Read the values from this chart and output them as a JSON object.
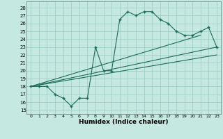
{
  "title": "",
  "xlabel": "Humidex (Indice chaleur)",
  "ylabel": "",
  "bg_color": "#c5e8e0",
  "grid_color": "#9ecfc7",
  "line_color": "#1a6b5a",
  "x_ticks": [
    0,
    1,
    2,
    3,
    4,
    5,
    6,
    7,
    8,
    9,
    10,
    11,
    12,
    13,
    14,
    15,
    16,
    17,
    18,
    19,
    20,
    21,
    22,
    23
  ],
  "y_ticks": [
    15,
    16,
    17,
    18,
    19,
    20,
    21,
    22,
    23,
    24,
    25,
    26,
    27,
    28
  ],
  "ylim": [
    14.5,
    28.8
  ],
  "xlim": [
    -0.5,
    23.5
  ],
  "main_y": [
    18,
    18,
    18,
    17,
    16.5,
    15.5,
    16.5,
    16.5,
    23,
    20,
    20,
    26.5,
    27.5,
    27,
    27.5,
    27.5,
    26.5,
    26,
    25,
    24.5,
    24.5,
    25,
    25.5,
    23
  ],
  "trend1_x": [
    0,
    23
  ],
  "trend1_y": [
    18.0,
    23.0
  ],
  "trend2_x": [
    0,
    23
  ],
  "trend2_y": [
    18.0,
    22.0
  ],
  "trend3_x": [
    0,
    21
  ],
  "trend3_y": [
    18.0,
    24.5
  ]
}
